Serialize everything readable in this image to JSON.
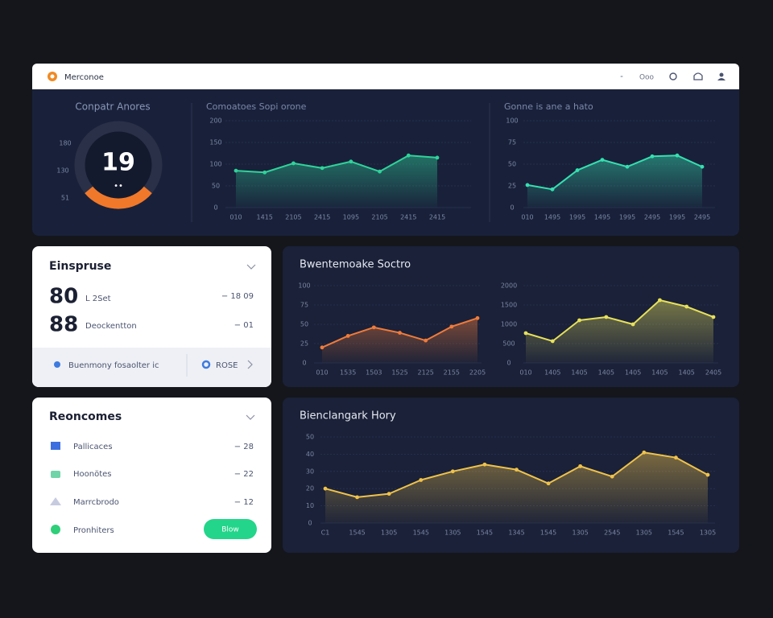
{
  "header": {
    "brand": "Merconoe",
    "actions": [
      "⁃",
      "Ooo"
    ]
  },
  "gauge": {
    "title": "Conpatr Anores",
    "scale": [
      "180",
      "130",
      "51"
    ],
    "value": "19",
    "caption": "••"
  },
  "charts": [
    {
      "type": "area",
      "title": "Comoatoes Sopi orone",
      "color": "#2fd39a",
      "categories": [
        "010",
        "1415",
        "2105",
        "2415",
        "1095",
        "2105",
        "2415",
        "2415"
      ],
      "values": [
        85,
        81,
        102,
        91,
        106,
        83,
        120,
        115
      ],
      "ylim": [
        0,
        200
      ],
      "yticks": [
        0,
        50,
        100,
        150,
        200
      ],
      "grid": true,
      "markers": true
    },
    {
      "type": "area",
      "title": "Gonne is ane a hato",
      "color": "#35e0b0",
      "categories": [
        "010",
        "1495",
        "1995",
        "1495",
        "1995",
        "2495",
        "1995",
        "2495"
      ],
      "values": [
        26,
        21,
        43,
        55,
        47,
        59,
        60,
        47
      ],
      "ylim": [
        0,
        100
      ],
      "yticks": [
        0,
        25,
        50,
        75,
        100
      ],
      "grid": true,
      "markers": true
    },
    {
      "type": "area",
      "title": "Bwentemoake Soctro",
      "color": "#f07b3a",
      "categories": [
        "010",
        "1535",
        "1503",
        "1525",
        "2125",
        "2155",
        "2205"
      ],
      "values": [
        20,
        35,
        46,
        39,
        29,
        47,
        58
      ],
      "ylim": [
        0,
        100
      ],
      "yticks": [
        0,
        25,
        50,
        75,
        100
      ],
      "grid": true,
      "markers": true
    },
    {
      "type": "area",
      "color": "#e7e15a",
      "categories": [
        "010",
        "1405",
        "1405",
        "1405",
        "1405",
        "1405",
        "1405",
        "2405"
      ],
      "values": [
        771,
        563,
        1104,
        1188,
        1000,
        1625,
        1458,
        1188
      ],
      "ylim": [
        0,
        2000
      ],
      "yticks": [
        0,
        500,
        1000,
        1500,
        2000
      ],
      "grid": true,
      "markers": true
    },
    {
      "type": "area",
      "title": "Bienclangark Hory",
      "color": "#f0c24a",
      "categories": [
        "C1",
        "1545",
        "1305",
        "1545",
        "1305",
        "1545",
        "1345",
        "1545",
        "1305",
        "2545",
        "1305",
        "1545",
        "1305"
      ],
      "values": [
        20,
        15,
        17,
        25,
        30,
        34,
        31,
        23,
        33,
        27,
        41,
        38,
        28
      ],
      "ylim": [
        0,
        50
      ],
      "yticks": [
        0,
        10,
        20,
        30,
        40,
        50
      ],
      "grid": true,
      "markers": true
    }
  ],
  "summary": {
    "title": "Einspruse",
    "rows": [
      {
        "value": "80",
        "label": "L 2Set",
        "delta": "− 18 09"
      },
      {
        "value": "88",
        "label": "Deockentton",
        "delta": "− 01"
      }
    ],
    "footer": {
      "left": "Buenmony fosaolter ic",
      "right": "ROSE"
    }
  },
  "resources": {
    "title": "Reoncomes",
    "rows": [
      {
        "label": "Pallicaces",
        "value": "− 28"
      },
      {
        "label": "Hoonötes",
        "value": "− 22"
      },
      {
        "label": "Marrcbrodo",
        "value": "− 12"
      },
      {
        "label": "Pronhiters"
      }
    ],
    "button": "Blow"
  }
}
